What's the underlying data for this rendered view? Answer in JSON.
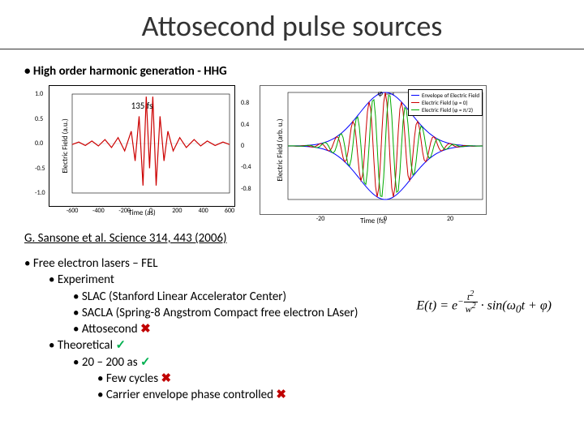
{
  "title": "Attosecond pulse sources",
  "hhg_bullet": "High order harmonic generation - HHG",
  "pulse_label": "135 fs",
  "citation": "G. Sansone et al. Science 314, 443 (2006)",
  "left_chart": {
    "type": "line",
    "xlabel": "Time (as)",
    "ylabel": "Electric Field (a.u.)",
    "xlim": [
      -600,
      600
    ],
    "ylim": [
      -1.0,
      1.0
    ],
    "xticks": [
      -600,
      -400,
      -200,
      0,
      200,
      400,
      600
    ],
    "yticks": [
      -1.0,
      -0.5,
      0.0,
      0.5,
      1.0
    ],
    "line_color": "#cc0000",
    "line_width": 1.2,
    "background": "#ffffff",
    "points": [
      [
        -600,
        -0.02
      ],
      [
        -550,
        0.03
      ],
      [
        -500,
        -0.04
      ],
      [
        -450,
        0.05
      ],
      [
        -400,
        -0.05
      ],
      [
        -350,
        0.08
      ],
      [
        -300,
        -0.08
      ],
      [
        -250,
        0.12
      ],
      [
        -200,
        -0.15
      ],
      [
        -150,
        0.25
      ],
      [
        -120,
        -0.35
      ],
      [
        -90,
        0.55
      ],
      [
        -60,
        -0.85
      ],
      [
        -35,
        0.95
      ],
      [
        -10,
        -0.5
      ],
      [
        15,
        0.95
      ],
      [
        40,
        -0.85
      ],
      [
        70,
        0.55
      ],
      [
        100,
        -0.35
      ],
      [
        130,
        0.25
      ],
      [
        170,
        -0.15
      ],
      [
        220,
        0.12
      ],
      [
        270,
        -0.08
      ],
      [
        330,
        0.08
      ],
      [
        380,
        -0.05
      ],
      [
        430,
        0.05
      ],
      [
        490,
        -0.04
      ],
      [
        550,
        0.03
      ],
      [
        600,
        -0.02
      ]
    ]
  },
  "right_chart": {
    "type": "line",
    "xlabel": "Time (fs)",
    "ylabel": "Electric Field (arb. u.)",
    "xlim": [
      -30,
      30
    ],
    "ylim": [
      -1.0,
      1.0
    ],
    "xticks": [
      -20,
      0,
      20
    ],
    "yticks": [
      -0.8,
      -0.4,
      0,
      0.4,
      0.8
    ],
    "background": "#ffffff",
    "legend": [
      {
        "label": "Envelope of Electric Field",
        "color": "#0000ff"
      },
      {
        "label": "Electric Field (φ = 0)",
        "color": "#cc0000"
      },
      {
        "label": "Electric Field (φ = π/2)",
        "color": "#00aa00"
      }
    ],
    "phi_label": "φ",
    "envelope_color": "#0000ff",
    "phase0_color": "#cc0000",
    "phase90_color": "#00aa00",
    "line_width": 1,
    "envelope_points": [
      [
        -30,
        0.01
      ],
      [
        -25,
        0.03
      ],
      [
        -20,
        0.08
      ],
      [
        -15,
        0.2
      ],
      [
        -10,
        0.45
      ],
      [
        -7,
        0.65
      ],
      [
        -5,
        0.8
      ],
      [
        -3,
        0.92
      ],
      [
        0,
        1.0
      ],
      [
        3,
        0.92
      ],
      [
        5,
        0.8
      ],
      [
        7,
        0.65
      ],
      [
        10,
        0.45
      ],
      [
        15,
        0.2
      ],
      [
        20,
        0.08
      ],
      [
        25,
        0.03
      ],
      [
        30,
        0.01
      ]
    ]
  },
  "equation_text": "E(t) = e^{-t²/w²} · sin(ω₀t + φ)",
  "fel": {
    "root": "Free electron lasers – FEL",
    "experiment": "Experiment",
    "slac": "SLAC (Stanford Linear Accelerator Center)",
    "sacla": "SACLA (Spring-8 Angstrom Compact free electron LAser)",
    "att": "Attosecond",
    "theoretical": "Theoretical",
    "range": "20 – 200 as",
    "fewcycles": "Few cycles",
    "cep": "Carrier envelope phase controlled"
  },
  "marks": {
    "check": "✓",
    "cross": "✖"
  }
}
